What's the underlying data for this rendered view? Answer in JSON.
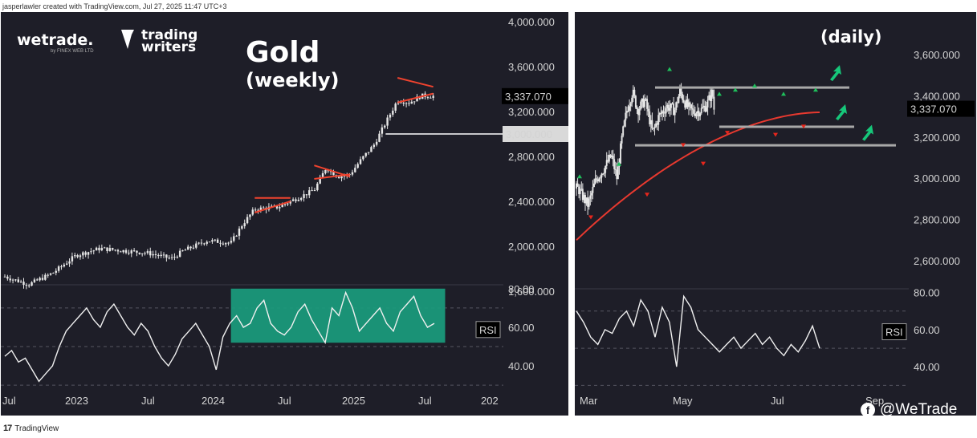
{
  "credit": "jasperlawler created with TradingView.com, Jul 27, 2025 11:47 UTC+3",
  "footer_logo": "TradingView",
  "watermark": "@WeTrade",
  "branding": {
    "wetrade": "wetrade.",
    "wetrade_sub": "by FINEX WEB LTD",
    "trading_writers_1": "trading",
    "trading_writers_2": "writers"
  },
  "colors": {
    "panel_bg": "#1e1e28",
    "bars": "#e6e6e6",
    "rsi_line": "#f0f0f0",
    "rsi_highlight": "#1a9e7e",
    "trend_red": "#e8392f",
    "pattern_red": "#f0432e",
    "level_gray": "#a8a8a8",
    "arrow_green": "#16c77a",
    "marker_green": "#1fbf5b",
    "marker_red": "#e8261c",
    "price_label_bg": "#000000",
    "level_label_bg": "#d9d9d9"
  },
  "icons": {
    "footer": "tradingview-logo-icon",
    "watermark": "facebook-f-icon",
    "brand_1": "wetrade-logo",
    "brand_2": "trading-writers-logo"
  },
  "chart_data": [
    {
      "type": "candlestick",
      "title": "Gold",
      "subtitle": "(weekly)",
      "price_axis": {
        "ticks": [
          "4,000.000",
          "3,600.000",
          "3,200.000",
          "2,800.000",
          "2,400.000",
          "2,000.000",
          "1,600.000"
        ],
        "range": [
          1450,
          4000
        ]
      },
      "x_ticks": [
        "Jul",
        "2023",
        "Jul",
        "2024",
        "Jul",
        "2025",
        "Jul",
        "202"
      ],
      "last_price": "3,337.070",
      "level_label": "3,000.000",
      "close_series": {
        "dates": [
          "2022-07",
          "2022-09",
          "2022-11",
          "2023-01",
          "2023-03",
          "2023-05",
          "2023-07",
          "2023-09",
          "2023-10",
          "2023-12",
          "2024-02",
          "2024-03",
          "2024-04",
          "2024-06",
          "2024-07",
          "2024-09",
          "2024-10",
          "2024-11",
          "2024-12",
          "2025-01",
          "2025-02",
          "2025-03",
          "2025-04",
          "2025-05",
          "2025-06",
          "2025-07"
        ],
        "values": [
          1730,
          1660,
          1760,
          1920,
          1980,
          1960,
          1940,
          1890,
          1960,
          2050,
          2030,
          2200,
          2330,
          2350,
          2400,
          2500,
          2700,
          2620,
          2640,
          2780,
          2900,
          3100,
          3300,
          3280,
          3340,
          3337
        ]
      },
      "patterns": [
        {
          "name": "triangle 2024",
          "from": "2024-04",
          "to": "2024-07",
          "top": 2430,
          "bottom_start": 2300,
          "bottom_end": 2400
        },
        {
          "name": "flag 2024",
          "from": "2024-09",
          "to": "2024-12",
          "top_start": 2720,
          "top_end": 2620,
          "bottom": 2600
        },
        {
          "name": "triangle 2025",
          "from": "2025-04",
          "to": "2025-07",
          "top_start": 3500,
          "top_end": 3420,
          "bottom_start": 3280,
          "bottom_end": 3360
        }
      ],
      "horizontal_level": 3000,
      "rsi": {
        "label": "RSI",
        "ticks": [
          "80.00",
          "60.00",
          "40.00"
        ],
        "range": [
          28,
          82
        ],
        "values": [
          45,
          48,
          42,
          44,
          38,
          32,
          36,
          40,
          50,
          58,
          62,
          66,
          70,
          64,
          60,
          68,
          72,
          66,
          60,
          56,
          62,
          58,
          50,
          44,
          40,
          46,
          54,
          58,
          62,
          56,
          50,
          38,
          55,
          62,
          66,
          60,
          62,
          70,
          74,
          62,
          58,
          56,
          60,
          68,
          72,
          64,
          58,
          52,
          70,
          66,
          78,
          70,
          58,
          62,
          66,
          70,
          62,
          58,
          68,
          72,
          76,
          66,
          60,
          62
        ],
        "highlight": {
          "from": "2024-02",
          "to": "2025-08",
          "range": [
            52,
            80
          ]
        }
      }
    },
    {
      "type": "candlestick",
      "title": "(daily)",
      "price_axis": {
        "ticks": [
          "3,600.000",
          "3,400.000",
          "3,200.000",
          "3,000.000",
          "2,800.000",
          "2,600.000"
        ],
        "range": [
          2450,
          3780
        ]
      },
      "x_ticks": [
        "Mar",
        "May",
        "Jul",
        "Sep"
      ],
      "last_price": "3,337.070",
      "close_series": {
        "dates": [
          "2025-02-20",
          "2025-03-01",
          "2025-03-10",
          "2025-03-20",
          "2025-03-28",
          "2025-04-04",
          "2025-04-10",
          "2025-04-15",
          "2025-04-22",
          "2025-04-28",
          "2025-05-06",
          "2025-05-15",
          "2025-05-22",
          "2025-06-01",
          "2025-06-10",
          "2025-06-16",
          "2025-06-24",
          "2025-07-01",
          "2025-07-10",
          "2025-07-17",
          "2025-07-23",
          "2025-07-25"
        ],
        "values": [
          2950,
          2870,
          2990,
          3050,
          3110,
          3000,
          3200,
          3320,
          3420,
          3330,
          3380,
          3220,
          3300,
          3350,
          3330,
          3420,
          3350,
          3320,
          3330,
          3360,
          3420,
          3337
        ]
      },
      "moving_average": {
        "start": 2700,
        "end": 3320
      },
      "levels": [
        3440,
        3250,
        3160
      ],
      "rsi": {
        "label": "RSI",
        "ticks": [
          "80.00",
          "60.00",
          "40.00"
        ],
        "range": [
          28,
          82
        ],
        "values": [
          70,
          64,
          56,
          52,
          60,
          58,
          66,
          70,
          62,
          76,
          70,
          56,
          72,
          64,
          40,
          78,
          72,
          60,
          56,
          52,
          48,
          52,
          56,
          50,
          54,
          58,
          52,
          56,
          50,
          46,
          52,
          48,
          54,
          62,
          50
        ]
      }
    }
  ]
}
